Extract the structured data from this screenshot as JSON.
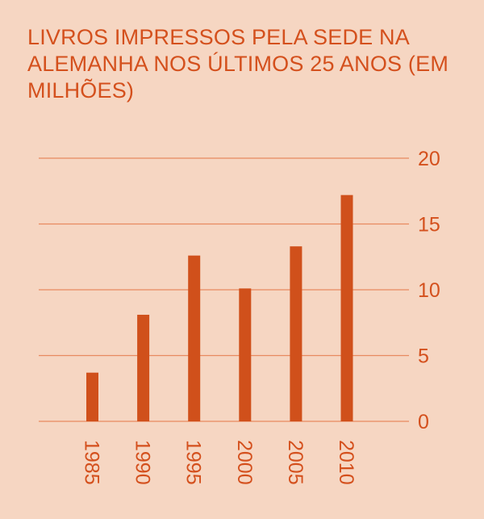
{
  "chart_data": {
    "type": "bar",
    "title": "LIVROS IMPRESSOS PELA SEDE NA ALEMANHA NOS ÚLTIMOS 25 ANOS (EM MILHÕES)",
    "categories": [
      "1985",
      "1990",
      "1995",
      "2000",
      "2005",
      "2010"
    ],
    "values": [
      3.7,
      8.1,
      12.6,
      10.1,
      13.3,
      17.2
    ],
    "xlabel": "",
    "ylabel": "",
    "ylim": [
      0,
      20
    ],
    "yticks": [
      "0",
      "5",
      "10",
      "15",
      "20"
    ],
    "y_axis_position": "right",
    "grid": true,
    "colors": {
      "bar": "#d0501b",
      "grid": "#e88a60",
      "background": "#f6d6c2",
      "text": "#d4501d"
    }
  }
}
